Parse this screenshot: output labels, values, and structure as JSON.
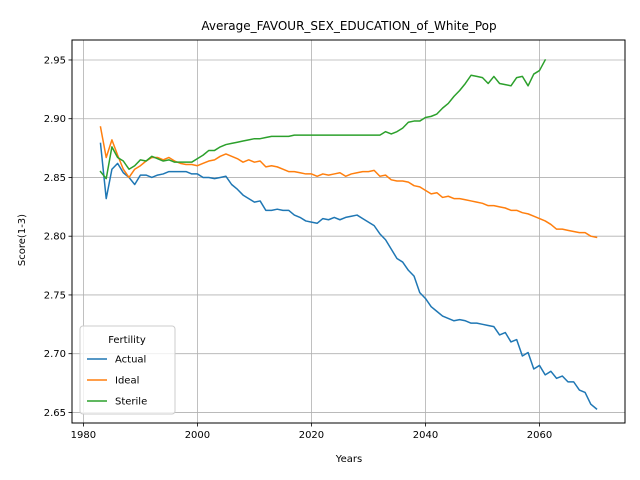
{
  "chart_data": {
    "type": "line",
    "title": "Average_FAVOUR_SEX_EDUCATION_of_White_Pop",
    "xlabel": "Years",
    "ylabel": "Score(1-3)",
    "xlim": [
      1978,
      2075
    ],
    "ylim": [
      2.641,
      2.967
    ],
    "xticks": [
      1980,
      2000,
      2020,
      2040,
      2060
    ],
    "yticks": [
      2.65,
      2.7,
      2.75,
      2.8,
      2.85,
      2.9,
      2.95
    ],
    "ytick_labels": [
      "2.65",
      "2.70",
      "2.75",
      "2.80",
      "2.85",
      "2.90",
      "2.95"
    ],
    "grid": true,
    "legend": {
      "title": "Fertility",
      "placement": "lower-left"
    },
    "series": [
      {
        "name": "Actual",
        "color": "#1f77b4",
        "points": [
          [
            1983,
            2.879
          ],
          [
            1984,
            2.832
          ],
          [
            1985,
            2.857
          ],
          [
            1986,
            2.862
          ],
          [
            1987,
            2.854
          ],
          [
            1988,
            2.85
          ],
          [
            1989,
            2.844
          ],
          [
            1990,
            2.852
          ],
          [
            1991,
            2.852
          ],
          [
            1992,
            2.85
          ],
          [
            1993,
            2.852
          ],
          [
            1994,
            2.853
          ],
          [
            1995,
            2.855
          ],
          [
            1996,
            2.855
          ],
          [
            1997,
            2.855
          ],
          [
            1998,
            2.855
          ],
          [
            1999,
            2.853
          ],
          [
            2000,
            2.853
          ],
          [
            2001,
            2.85
          ],
          [
            2002,
            2.85
          ],
          [
            2003,
            2.849
          ],
          [
            2004,
            2.85
          ],
          [
            2005,
            2.851
          ],
          [
            2006,
            2.844
          ],
          [
            2007,
            2.84
          ],
          [
            2008,
            2.835
          ],
          [
            2009,
            2.832
          ],
          [
            2010,
            2.829
          ],
          [
            2011,
            2.83
          ],
          [
            2012,
            2.822
          ],
          [
            2013,
            2.822
          ],
          [
            2014,
            2.823
          ],
          [
            2015,
            2.822
          ],
          [
            2016,
            2.822
          ],
          [
            2017,
            2.818
          ],
          [
            2018,
            2.816
          ],
          [
            2019,
            2.813
          ],
          [
            2020,
            2.812
          ],
          [
            2021,
            2.811
          ],
          [
            2022,
            2.815
          ],
          [
            2023,
            2.814
          ],
          [
            2024,
            2.816
          ],
          [
            2025,
            2.814
          ],
          [
            2026,
            2.816
          ],
          [
            2027,
            2.817
          ],
          [
            2028,
            2.818
          ],
          [
            2029,
            2.815
          ],
          [
            2030,
            2.812
          ],
          [
            2031,
            2.809
          ],
          [
            2032,
            2.802
          ],
          [
            2033,
            2.797
          ],
          [
            2034,
            2.789
          ],
          [
            2035,
            2.781
          ],
          [
            2036,
            2.778
          ],
          [
            2037,
            2.771
          ],
          [
            2038,
            2.766
          ],
          [
            2039,
            2.752
          ],
          [
            2040,
            2.747
          ],
          [
            2041,
            2.74
          ],
          [
            2042,
            2.736
          ],
          [
            2043,
            2.732
          ],
          [
            2044,
            2.73
          ],
          [
            2045,
            2.728
          ],
          [
            2046,
            2.729
          ],
          [
            2047,
            2.728
          ],
          [
            2048,
            2.726
          ],
          [
            2049,
            2.726
          ],
          [
            2050,
            2.725
          ],
          [
            2051,
            2.724
          ],
          [
            2052,
            2.723
          ],
          [
            2053,
            2.716
          ],
          [
            2054,
            2.718
          ],
          [
            2055,
            2.71
          ],
          [
            2056,
            2.712
          ],
          [
            2057,
            2.698
          ],
          [
            2058,
            2.701
          ],
          [
            2059,
            2.687
          ],
          [
            2060,
            2.69
          ],
          [
            2061,
            2.682
          ],
          [
            2062,
            2.685
          ],
          [
            2063,
            2.679
          ],
          [
            2064,
            2.681
          ],
          [
            2065,
            2.676
          ],
          [
            2066,
            2.676
          ],
          [
            2067,
            2.669
          ],
          [
            2068,
            2.667
          ],
          [
            2069,
            2.657
          ],
          [
            2070,
            2.653
          ]
        ]
      },
      {
        "name": "Ideal",
        "color": "#ff7f0e",
        "points": [
          [
            1983,
            2.893
          ],
          [
            1984,
            2.867
          ],
          [
            1985,
            2.882
          ],
          [
            1986,
            2.869
          ],
          [
            1987,
            2.857
          ],
          [
            1988,
            2.85
          ],
          [
            1989,
            2.857
          ],
          [
            1990,
            2.86
          ],
          [
            1991,
            2.864
          ],
          [
            1992,
            2.867
          ],
          [
            1993,
            2.867
          ],
          [
            1994,
            2.865
          ],
          [
            1995,
            2.867
          ],
          [
            1996,
            2.864
          ],
          [
            1997,
            2.862
          ],
          [
            1998,
            2.861
          ],
          [
            1999,
            2.861
          ],
          [
            2000,
            2.86
          ],
          [
            2001,
            2.862
          ],
          [
            2002,
            2.864
          ],
          [
            2003,
            2.865
          ],
          [
            2004,
            2.868
          ],
          [
            2005,
            2.87
          ],
          [
            2006,
            2.868
          ],
          [
            2007,
            2.866
          ],
          [
            2008,
            2.863
          ],
          [
            2009,
            2.865
          ],
          [
            2010,
            2.863
          ],
          [
            2011,
            2.864
          ],
          [
            2012,
            2.859
          ],
          [
            2013,
            2.86
          ],
          [
            2014,
            2.859
          ],
          [
            2015,
            2.857
          ],
          [
            2016,
            2.855
          ],
          [
            2017,
            2.855
          ],
          [
            2018,
            2.854
          ],
          [
            2019,
            2.853
          ],
          [
            2020,
            2.853
          ],
          [
            2021,
            2.851
          ],
          [
            2022,
            2.853
          ],
          [
            2023,
            2.852
          ],
          [
            2024,
            2.853
          ],
          [
            2025,
            2.854
          ],
          [
            2026,
            2.851
          ],
          [
            2027,
            2.853
          ],
          [
            2028,
            2.854
          ],
          [
            2029,
            2.855
          ],
          [
            2030,
            2.855
          ],
          [
            2031,
            2.856
          ],
          [
            2032,
            2.851
          ],
          [
            2033,
            2.852
          ],
          [
            2034,
            2.848
          ],
          [
            2035,
            2.847
          ],
          [
            2036,
            2.847
          ],
          [
            2037,
            2.846
          ],
          [
            2038,
            2.843
          ],
          [
            2039,
            2.842
          ],
          [
            2040,
            2.839
          ],
          [
            2041,
            2.836
          ],
          [
            2042,
            2.837
          ],
          [
            2043,
            2.833
          ],
          [
            2044,
            2.834
          ],
          [
            2045,
            2.832
          ],
          [
            2046,
            2.832
          ],
          [
            2047,
            2.831
          ],
          [
            2048,
            2.83
          ],
          [
            2049,
            2.829
          ],
          [
            2050,
            2.828
          ],
          [
            2051,
            2.826
          ],
          [
            2052,
            2.826
          ],
          [
            2053,
            2.825
          ],
          [
            2054,
            2.824
          ],
          [
            2055,
            2.822
          ],
          [
            2056,
            2.822
          ],
          [
            2057,
            2.82
          ],
          [
            2058,
            2.819
          ],
          [
            2059,
            2.817
          ],
          [
            2060,
            2.815
          ],
          [
            2061,
            2.813
          ],
          [
            2062,
            2.81
          ],
          [
            2063,
            2.806
          ],
          [
            2064,
            2.806
          ],
          [
            2065,
            2.805
          ],
          [
            2066,
            2.804
          ],
          [
            2067,
            2.803
          ],
          [
            2068,
            2.803
          ],
          [
            2069,
            2.8
          ],
          [
            2070,
            2.799
          ]
        ]
      },
      {
        "name": "Sterile",
        "color": "#2ca02c",
        "points": [
          [
            1983,
            2.855
          ],
          [
            1984,
            2.849
          ],
          [
            1985,
            2.876
          ],
          [
            1986,
            2.867
          ],
          [
            1987,
            2.864
          ],
          [
            1988,
            2.857
          ],
          [
            1989,
            2.86
          ],
          [
            1990,
            2.865
          ],
          [
            1991,
            2.864
          ],
          [
            1992,
            2.868
          ],
          [
            1993,
            2.866
          ],
          [
            1994,
            2.864
          ],
          [
            1995,
            2.865
          ],
          [
            1996,
            2.863
          ],
          [
            1997,
            2.863
          ],
          [
            1998,
            2.863
          ],
          [
            1999,
            2.863
          ],
          [
            2000,
            2.866
          ],
          [
            2001,
            2.869
          ],
          [
            2002,
            2.873
          ],
          [
            2003,
            2.873
          ],
          [
            2004,
            2.876
          ],
          [
            2005,
            2.878
          ],
          [
            2006,
            2.879
          ],
          [
            2007,
            2.88
          ],
          [
            2008,
            2.881
          ],
          [
            2009,
            2.882
          ],
          [
            2010,
            2.883
          ],
          [
            2011,
            2.883
          ],
          [
            2012,
            2.884
          ],
          [
            2013,
            2.885
          ],
          [
            2014,
            2.885
          ],
          [
            2015,
            2.885
          ],
          [
            2016,
            2.885
          ],
          [
            2017,
            2.886
          ],
          [
            2018,
            2.886
          ],
          [
            2019,
            2.886
          ],
          [
            2020,
            2.886
          ],
          [
            2021,
            2.886
          ],
          [
            2022,
            2.886
          ],
          [
            2023,
            2.886
          ],
          [
            2024,
            2.886
          ],
          [
            2025,
            2.886
          ],
          [
            2026,
            2.886
          ],
          [
            2027,
            2.886
          ],
          [
            2028,
            2.886
          ],
          [
            2029,
            2.886
          ],
          [
            2030,
            2.886
          ],
          [
            2031,
            2.886
          ],
          [
            2032,
            2.886
          ],
          [
            2033,
            2.889
          ],
          [
            2034,
            2.887
          ],
          [
            2035,
            2.889
          ],
          [
            2036,
            2.892
          ],
          [
            2037,
            2.897
          ],
          [
            2038,
            2.898
          ],
          [
            2039,
            2.898
          ],
          [
            2040,
            2.901
          ],
          [
            2041,
            2.902
          ],
          [
            2042,
            2.904
          ],
          [
            2043,
            2.909
          ],
          [
            2044,
            2.913
          ],
          [
            2045,
            2.919
          ],
          [
            2046,
            2.924
          ],
          [
            2047,
            2.93
          ],
          [
            2048,
            2.937
          ],
          [
            2049,
            2.936
          ],
          [
            2050,
            2.935
          ],
          [
            2051,
            2.93
          ],
          [
            2052,
            2.936
          ],
          [
            2053,
            2.93
          ],
          [
            2054,
            2.929
          ],
          [
            2055,
            2.928
          ],
          [
            2056,
            2.935
          ],
          [
            2057,
            2.936
          ],
          [
            2058,
            2.928
          ],
          [
            2059,
            2.938
          ],
          [
            2060,
            2.941
          ],
          [
            2061,
            2.95
          ]
        ]
      }
    ]
  }
}
